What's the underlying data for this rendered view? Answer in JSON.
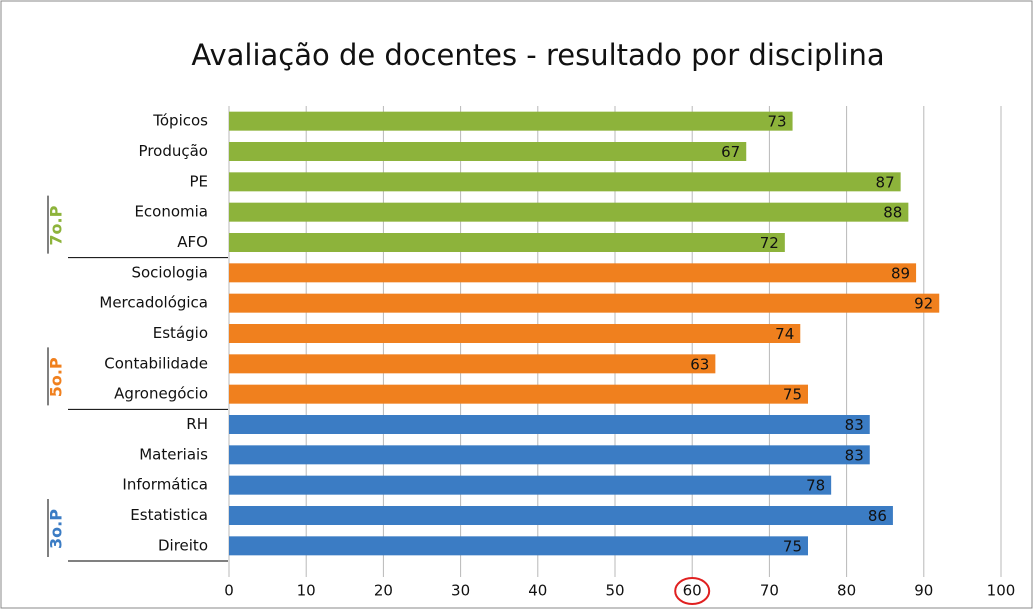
{
  "chart_data": {
    "type": "bar",
    "orientation": "horizontal",
    "title": "Avaliação de docentes - resultado por disciplina",
    "groups": [
      {
        "name": "7o.P",
        "color": "#8db33b",
        "categories": [
          "Tópicos",
          "Produção",
          "PE",
          "Economia",
          "AFO"
        ],
        "values": [
          73,
          67,
          87,
          88,
          72
        ]
      },
      {
        "name": "5o.P",
        "color": "#f0801e",
        "categories": [
          "Sociologia",
          "Mercadológica",
          "Estágio",
          "Contabilidade",
          "Agronegócio"
        ],
        "values": [
          89,
          92,
          74,
          63,
          75
        ]
      },
      {
        "name": "3o.P",
        "color": "#3b7cc4",
        "categories": [
          "RH",
          "Materiais",
          "Informática",
          "Estatistica",
          "Direito"
        ],
        "values": [
          83,
          83,
          78,
          86,
          75
        ]
      }
    ],
    "xlim": [
      0,
      100
    ],
    "xticks": [
      0,
      10,
      20,
      30,
      40,
      50,
      60,
      70,
      80,
      90,
      100
    ],
    "grid": true,
    "highlighted_tick": 60,
    "highlight_color": "#e02020"
  }
}
